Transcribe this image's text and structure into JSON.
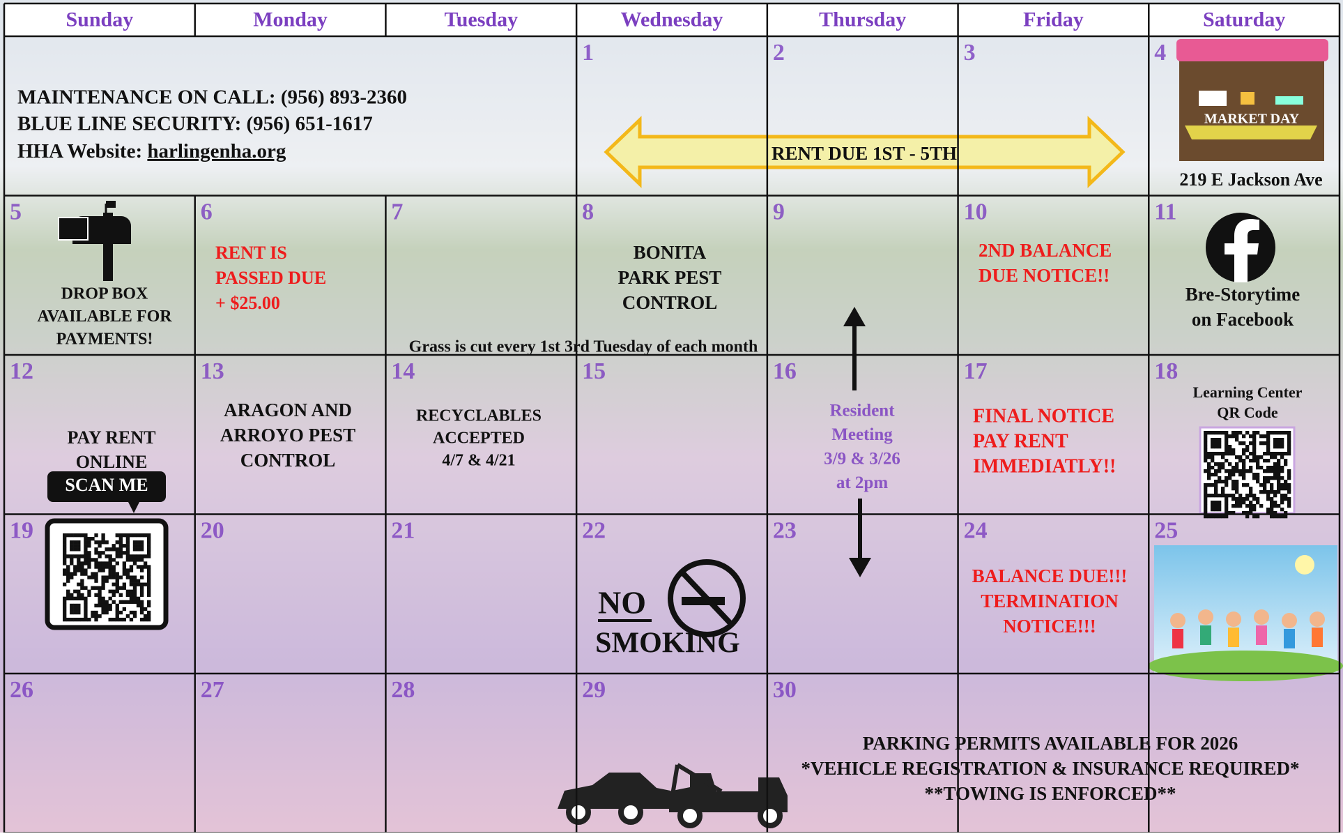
{
  "weekdays": [
    "Sunday",
    "Monday",
    "Tuesday",
    "Wednesday",
    "Thursday",
    "Friday",
    "Saturday"
  ],
  "dates": [
    "1",
    "2",
    "3",
    "4",
    "5",
    "6",
    "7",
    "8",
    "9",
    "10",
    "11",
    "12",
    "13",
    "14",
    "15",
    "16",
    "17",
    "18",
    "19",
    "20",
    "21",
    "22",
    "23",
    "24",
    "25",
    "26",
    "27",
    "28",
    "29",
    "30"
  ],
  "contacts": {
    "maintenance": "MAINTENANCE ON CALL:  (956) 893-2360",
    "security": "BLUE LINE SECURITY: (956) 651-1617",
    "website_label": "HHA Website: ",
    "website": "harlingenha.org"
  },
  "events": {
    "rent_due": "RENT DUE 1ST - 5TH",
    "market_day": {
      "sign": "MARKET DAY",
      "address": "219 E Jackson Ave"
    },
    "drop_box": [
      "DROP BOX",
      "AVAILABLE FOR",
      "PAYMENTS!"
    ],
    "rent_passed_due": [
      "RENT IS",
      "PASSED DUE",
      "+ $25.00"
    ],
    "bonita_pest": [
      "BONITA",
      "PARK PEST",
      "CONTROL"
    ],
    "second_balance": [
      "2ND BALANCE",
      "DUE NOTICE!!"
    ],
    "storytime": [
      "Bre-Storytime",
      "on Facebook"
    ],
    "grass": "Grass is cut every 1st  3rd Tuesday of each month",
    "pay_online": {
      "lines": [
        "PAY RENT",
        "ONLINE"
      ],
      "button": "SCAN ME"
    },
    "aragon_pest": [
      "ARAGON AND",
      "ARROYO PEST",
      "CONTROL"
    ],
    "recyclables": [
      "RECYCLABLES",
      "ACCEPTED",
      "4/7 & 4/21"
    ],
    "resident_meeting": [
      "Resident",
      "Meeting",
      "3/9  & 3/26",
      "at 2pm"
    ],
    "final_notice": [
      "FINAL NOTICE",
      "PAY RENT",
      "IMMEDIATLY!!"
    ],
    "learning_center": [
      "Learning Center",
      "QR Code"
    ],
    "no_smoking": [
      "NO",
      "SMOKING"
    ],
    "termination": [
      "BALANCE DUE!!!",
      "TERMINATION",
      "NOTICE!!!"
    ],
    "parking": [
      "PARKING PERMITS AVAILABLE FOR 2026",
      "*VEHICLE REGISTRATION  & INSURANCE REQUIRED*",
      "**TOWING IS ENFORCED**"
    ]
  }
}
